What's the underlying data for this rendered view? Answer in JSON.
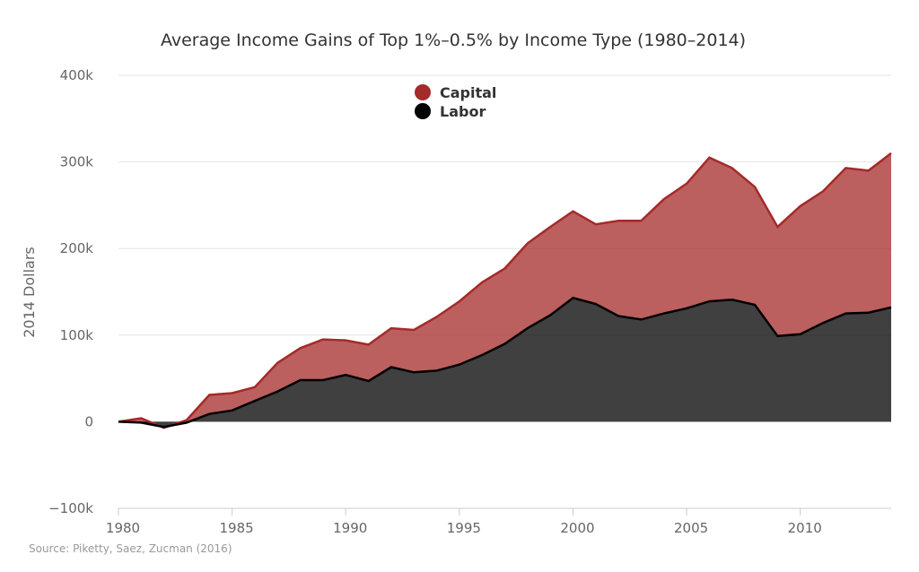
{
  "chart_data": {
    "type": "area",
    "title": "Average Income Gains of Top 1%–0.5% by Income Type (1980–2014)",
    "xlabel": "",
    "ylabel": "2014 Dollars",
    "source": "Source: Piketty, Saez, Zucman (2016)",
    "stacked": true,
    "xlim": [
      1980,
      2014
    ],
    "ylim": [
      -100000,
      400000
    ],
    "x_ticks": [
      1980,
      1985,
      1990,
      1995,
      2000,
      2005,
      2010
    ],
    "y_ticks": [
      -100000,
      0,
      100000,
      200000,
      300000,
      400000
    ],
    "y_tick_labels": [
      "−100k",
      "0",
      "100k",
      "200k",
      "300k",
      "400k"
    ],
    "grid": true,
    "legend_position": "top-center",
    "x": [
      1980,
      1981,
      1982,
      1983,
      1984,
      1985,
      1986,
      1987,
      1988,
      1989,
      1990,
      1991,
      1992,
      1993,
      1994,
      1995,
      1996,
      1997,
      1998,
      1999,
      2000,
      2001,
      2002,
      2003,
      2004,
      2005,
      2006,
      2007,
      2008,
      2009,
      2010,
      2011,
      2012,
      2013,
      2014
    ],
    "series": [
      {
        "name": "Labor",
        "color": "#000000",
        "values": [
          0,
          -1000,
          -6000,
          -1000,
          9000,
          13000,
          24000,
          35000,
          48000,
          48000,
          54000,
          47000,
          63000,
          57000,
          59000,
          66000,
          77000,
          90000,
          108000,
          123000,
          143000,
          136000,
          122000,
          118000,
          125000,
          131000,
          139000,
          141000,
          135000,
          99000,
          101000,
          114000,
          125000,
          126000,
          132000
        ]
      },
      {
        "name": "Capital",
        "color": "#a52a2a",
        "values": [
          0,
          5000,
          -1000,
          3000,
          22000,
          20000,
          16000,
          33000,
          37000,
          47000,
          40000,
          42000,
          45000,
          49000,
          62000,
          73000,
          84000,
          87000,
          98000,
          102000,
          100000,
          92000,
          110000,
          114000,
          132000,
          144000,
          166000,
          152000,
          136000,
          126000,
          148000,
          152000,
          168000,
          164000,
          178000
        ]
      }
    ]
  }
}
